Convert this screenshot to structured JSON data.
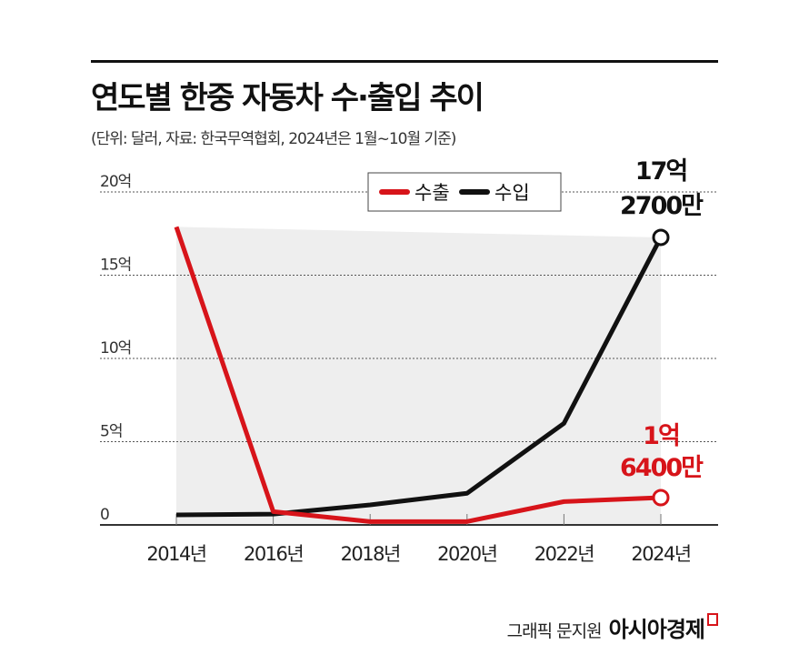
{
  "title": "연도별 한중 자동차 수·출입 추이",
  "subtitle": "(단위: 달러, 자료: 한국무역협회, 2024년은 1월~10월 기준)",
  "footer": {
    "credit": "그래픽 문지원",
    "brand": "아시아경제"
  },
  "colors": {
    "export": "#d7141a",
    "import": "#111111",
    "shade": "#eeeeee"
  },
  "chart_data": {
    "type": "line",
    "categories": [
      "2014년",
      "2016년",
      "2018년",
      "2020년",
      "2022년",
      "2024년"
    ],
    "x": [
      2014,
      2016,
      2018,
      2020,
      2022,
      2024
    ],
    "yticks": [
      0,
      5,
      10,
      15,
      20
    ],
    "ytick_labels": [
      "0",
      "5억",
      "10억",
      "15억",
      "20억"
    ],
    "ylim": [
      0,
      20
    ],
    "unit": "억 달러",
    "grid": "dotted horizontal",
    "legend": "top-center",
    "series": [
      {
        "name": "수출",
        "color": "#d7141a",
        "values": [
          17.9,
          0.8,
          0.2,
          0.2,
          1.4,
          1.64
        ]
      },
      {
        "name": "수입",
        "color": "#111111",
        "values": [
          0.6,
          0.65,
          1.2,
          1.9,
          6.1,
          17.27
        ]
      }
    ],
    "annotations": [
      {
        "series": "수입",
        "lines": [
          "17억",
          "2700만"
        ]
      },
      {
        "series": "수출",
        "lines": [
          "1억",
          "6400만"
        ]
      }
    ]
  }
}
